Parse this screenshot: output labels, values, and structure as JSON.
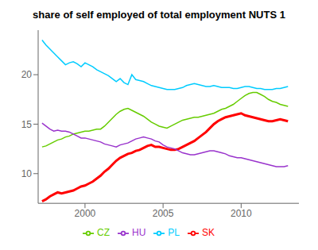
{
  "chart_data": {
    "type": "line",
    "title": "share of self employed of total employment NUTS 1",
    "x": [
      1997.25,
      1997.5,
      1997.75,
      1998.0,
      1998.25,
      1998.5,
      1998.75,
      1999.0,
      1999.25,
      1999.5,
      1999.75,
      2000.0,
      2000.25,
      2000.5,
      2000.75,
      2001.0,
      2001.25,
      2001.5,
      2001.75,
      2002.0,
      2002.25,
      2002.5,
      2002.75,
      2003.0,
      2003.25,
      2003.5,
      2003.75,
      2004.0,
      2004.25,
      2004.5,
      2004.75,
      2005.0,
      2005.25,
      2005.5,
      2005.75,
      2006.0,
      2006.25,
      2006.5,
      2006.75,
      2007.0,
      2007.25,
      2007.5,
      2007.75,
      2008.0,
      2008.25,
      2008.5,
      2008.75,
      2009.0,
      2009.25,
      2009.5,
      2009.75,
      2010.0,
      2010.25,
      2010.5,
      2010.75,
      2011.0,
      2011.25,
      2011.5,
      2011.75,
      2012.0,
      2012.25,
      2012.5,
      2012.75,
      2013.0
    ],
    "series": [
      {
        "name": "SK",
        "color": "#FF0000",
        "values": [
          7.2,
          7.4,
          7.7,
          7.9,
          8.1,
          8.0,
          8.1,
          8.2,
          8.3,
          8.5,
          8.7,
          8.8,
          9.0,
          9.2,
          9.5,
          9.8,
          10.2,
          10.5,
          10.9,
          11.3,
          11.6,
          11.8,
          12.0,
          12.1,
          12.3,
          12.4,
          12.6,
          12.8,
          12.9,
          12.7,
          12.7,
          12.6,
          12.5,
          12.4,
          12.4,
          12.5,
          12.7,
          12.9,
          13.1,
          13.3,
          13.6,
          13.9,
          14.2,
          14.6,
          15.0,
          15.3,
          15.5,
          15.7,
          15.8,
          15.9,
          16.0,
          16.1,
          15.9,
          15.8,
          15.7,
          15.6,
          15.5,
          15.4,
          15.3,
          15.3,
          15.4,
          15.5,
          15.4,
          15.3
        ]
      },
      {
        "name": "CZ",
        "color": "#66CC00",
        "values": [
          12.7,
          12.8,
          13.0,
          13.2,
          13.4,
          13.5,
          13.7,
          13.8,
          14.0,
          14.1,
          14.2,
          14.3,
          14.3,
          14.4,
          14.5,
          14.5,
          14.8,
          15.2,
          15.6,
          16.0,
          16.3,
          16.5,
          16.6,
          16.4,
          16.2,
          16.0,
          15.8,
          15.5,
          15.2,
          15.0,
          14.8,
          14.7,
          14.6,
          14.8,
          15.0,
          15.2,
          15.4,
          15.5,
          15.6,
          15.7,
          15.7,
          15.8,
          15.9,
          16.0,
          16.1,
          16.3,
          16.5,
          16.6,
          16.8,
          17.0,
          17.3,
          17.6,
          17.9,
          18.1,
          18.2,
          18.2,
          18.0,
          17.8,
          17.5,
          17.3,
          17.2,
          17.0,
          16.9,
          16.8
        ]
      },
      {
        "name": "PL",
        "color": "#00CCFF",
        "values": [
          23.5,
          23.0,
          22.6,
          22.2,
          21.8,
          21.4,
          21.0,
          21.2,
          21.3,
          21.1,
          20.8,
          21.2,
          21.0,
          20.8,
          20.5,
          20.3,
          20.1,
          19.9,
          19.6,
          19.3,
          19.6,
          19.2,
          19.0,
          20.0,
          19.5,
          19.4,
          19.3,
          19.1,
          18.9,
          18.8,
          18.7,
          18.6,
          18.5,
          18.5,
          18.5,
          18.6,
          18.7,
          18.9,
          19.0,
          19.1,
          19.0,
          18.9,
          18.8,
          18.8,
          18.9,
          18.8,
          18.7,
          18.7,
          18.7,
          18.6,
          18.6,
          18.7,
          18.8,
          18.8,
          18.7,
          18.6,
          18.6,
          18.5,
          18.5,
          18.5,
          18.6,
          18.6,
          18.7,
          18.8
        ]
      },
      {
        "name": "HU",
        "color": "#9933CC",
        "values": [
          15.1,
          14.8,
          14.5,
          14.3,
          14.4,
          14.3,
          14.3,
          14.2,
          14.0,
          13.8,
          13.6,
          13.6,
          13.5,
          13.4,
          13.3,
          13.2,
          13.0,
          12.9,
          12.8,
          12.7,
          12.9,
          13.0,
          13.1,
          13.3,
          13.5,
          13.6,
          13.7,
          13.6,
          13.5,
          13.3,
          13.2,
          12.9,
          12.7,
          12.6,
          12.5,
          12.3,
          12.1,
          12.0,
          11.9,
          11.9,
          12.0,
          12.1,
          12.2,
          12.3,
          12.3,
          12.2,
          12.1,
          12.0,
          11.8,
          11.7,
          11.6,
          11.6,
          11.5,
          11.4,
          11.3,
          11.2,
          11.1,
          11.0,
          10.9,
          10.8,
          10.7,
          10.7,
          10.7,
          10.8
        ]
      }
    ],
    "xlim": [
      1997.0,
      2013.7
    ],
    "ylim": [
      7.0,
      24.5
    ],
    "xticks": [
      2000,
      2005,
      2010
    ],
    "yticks": [
      10,
      15,
      20
    ],
    "grid": false,
    "legend": "bottom"
  }
}
